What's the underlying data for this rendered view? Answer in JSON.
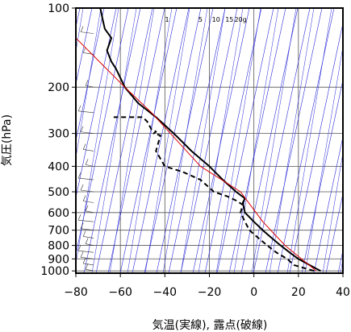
{
  "chart_data": {
    "type": "line",
    "title": "",
    "xlabel": "気温(実線), 露点(破線)",
    "ylabel": "気圧(hPa)",
    "xlim": [
      -80,
      40
    ],
    "ylim": [
      1020,
      100
    ],
    "y_scale": "log",
    "x_ticks": [
      -80,
      -60,
      -40,
      -20,
      0,
      20,
      40
    ],
    "y_ticks": [
      100,
      200,
      300,
      400,
      500,
      600,
      700,
      800,
      900,
      1000
    ],
    "grid": true,
    "mixing_ratio_labels": [
      "1",
      "5",
      "10",
      "15",
      "20g"
    ],
    "mixing_ratio_label_x": [
      -39,
      -24,
      -17,
      -11,
      -6
    ],
    "series": [
      {
        "name": "",
        "style": "solid",
        "color": "#000000",
        "points": [
          [
            30,
            1000
          ],
          [
            25,
            950
          ],
          [
            20,
            900
          ],
          [
            16,
            850
          ],
          [
            12,
            800
          ],
          [
            8,
            750
          ],
          [
            4,
            700
          ],
          [
            0,
            650
          ],
          [
            -4,
            600
          ],
          [
            -5,
            550
          ],
          [
            -4,
            530
          ],
          [
            -8,
            500
          ],
          [
            -14,
            450
          ],
          [
            -20,
            400
          ],
          [
            -28,
            350
          ],
          [
            -36,
            300
          ],
          [
            -44,
            260
          ],
          [
            -52,
            230
          ],
          [
            -58,
            200
          ],
          [
            -62,
            170
          ],
          [
            -64,
            160
          ],
          [
            -66,
            145
          ],
          [
            -64,
            130
          ],
          [
            -67,
            120
          ],
          [
            -68,
            110
          ],
          [
            -69,
            100
          ]
        ]
      },
      {
        "name": "",
        "style": "dashed",
        "color": "#000000",
        "points": [
          [
            27,
            1000
          ],
          [
            18,
            950
          ],
          [
            15,
            900
          ],
          [
            10,
            850
          ],
          [
            6,
            800
          ],
          [
            2,
            750
          ],
          [
            -2,
            700
          ],
          [
            -4,
            650
          ],
          [
            -6,
            600
          ],
          [
            -5,
            560
          ],
          [
            -8,
            540
          ],
          [
            -12,
            520
          ],
          [
            -18,
            500
          ],
          [
            -24,
            450
          ],
          [
            -32,
            420
          ],
          [
            -40,
            400
          ],
          [
            -44,
            350
          ],
          [
            -42,
            305
          ],
          [
            -45,
            300
          ],
          [
            -44,
            295
          ],
          [
            -46,
            290
          ],
          [
            -48,
            270
          ],
          [
            -50,
            260
          ],
          [
            -63,
            260
          ]
        ]
      },
      {
        "name": "",
        "style": "solid",
        "color": "#e00000",
        "points": [
          [
            28,
            1000
          ],
          [
            14,
            800
          ],
          [
            4,
            650
          ],
          [
            -6,
            500
          ],
          [
            -24,
            400
          ],
          [
            -46,
            250
          ],
          [
            -58,
            200
          ],
          [
            -80,
            130
          ]
        ]
      }
    ],
    "wind_barb_column_x": -72,
    "wind_barb_levels": [
      1000,
      950,
      900,
      850,
      800,
      750,
      700,
      650,
      600,
      550,
      500,
      450,
      400,
      350,
      300,
      250,
      200,
      150,
      125,
      100
    ]
  }
}
